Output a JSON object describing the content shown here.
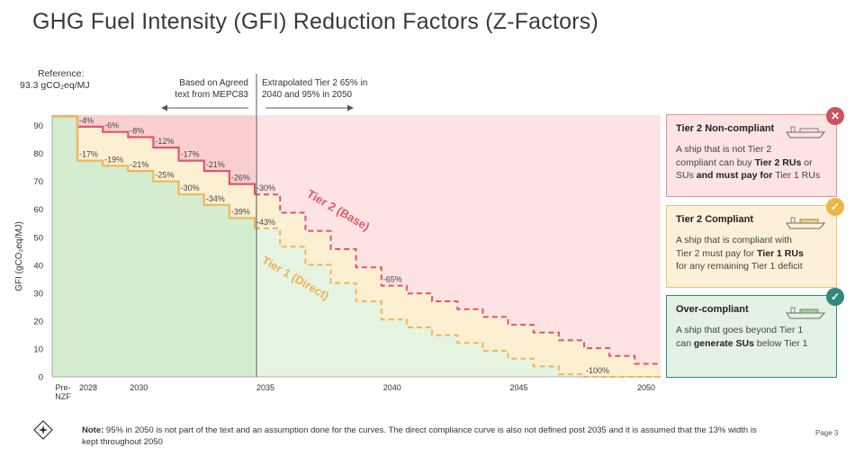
{
  "title": "GHG Fuel Intensity (GFI) Reduction Factors (Z-Factors)",
  "reference": {
    "line1": "Reference:",
    "line2": "93.3 gCO₂eq/MJ"
  },
  "annotations": {
    "left_text_1": "Based on Agreed",
    "left_text_2": "text from MEPC83",
    "right_text_1": "Extrapolated Tier 2 65% in",
    "right_text_2": "2040 and 95% in 2050",
    "label_tier2": "Tier 2 (Base)",
    "label_tier1": "Tier 1 (Direct)"
  },
  "cards": [
    {
      "title": "Tier 2 Non-compliant",
      "body_lines": [
        [
          "A ship that is not Tier 2",
          ""
        ],
        [
          "compliant can buy ",
          "Tier 2 RUs",
          " or"
        ],
        [
          "SUs",
          " and must pay for ",
          "Tier 1 RUs"
        ]
      ],
      "badge": "✕",
      "color": "#c9545b"
    },
    {
      "title": "Tier 2 Compliant",
      "body_lines": [
        [
          "A ship that is compliant with"
        ],
        [
          "Tier 2 must pay for ",
          "Tier 1 RUs"
        ],
        [
          "for any remaining Tier 1 deficit"
        ]
      ],
      "badge": "✓",
      "color": "#f0b54a"
    },
    {
      "title": "Over-compliant",
      "body_lines": [
        [
          "A ship that goes beyond Tier 1"
        ],
        [
          "can ",
          "generate SUs",
          " below Tier 1"
        ]
      ],
      "badge": "✓",
      "color": "#2e8a7d"
    }
  ],
  "note": {
    "label": "Note:",
    "text": "95% in 2050 is not part of the text and an assumption done for the curves. The direct compliance curve is also not defined post 2035 and it is assumed that the 13% width is kept throughout 2050"
  },
  "page_label": "Page 3",
  "colors": {
    "red_zone": "#fde3e3",
    "yellow_zone": "#fdf0d2",
    "green_zone": "#e6f5e2",
    "green_zone_solid": "#d4ecd0",
    "tier2_line": "#e0566a",
    "tier1_line": "#f2b45a"
  },
  "chart_data": {
    "type": "line",
    "title": "GHG Fuel Intensity (GFI) Reduction Factors (Z-Factors)",
    "ylabel": "GFI (gCO₂eq/MJ)",
    "xlabel": "",
    "ylim": [
      0,
      95
    ],
    "y_ticks": [
      0,
      10,
      20,
      30,
      40,
      50,
      60,
      70,
      80,
      90
    ],
    "x_tick_labels": [
      {
        "year": 2026,
        "label": "Pre-\nNZF"
      },
      {
        "year": 2028,
        "label": "2028"
      },
      {
        "year": 2030,
        "label": "2030"
      },
      {
        "year": 2035,
        "label": "2035"
      },
      {
        "year": 2040,
        "label": "2040"
      },
      {
        "year": 2045,
        "label": "2045"
      },
      {
        "year": 2050,
        "label": "2050"
      }
    ],
    "reference_value": 93.3,
    "step_years": [
      2028,
      2029,
      2030,
      2031,
      2032,
      2033,
      2034,
      2035,
      2036,
      2037,
      2038,
      2039,
      2040,
      2041,
      2042,
      2043,
      2044,
      2045,
      2046,
      2047,
      2048,
      2049,
      2050
    ],
    "series": [
      {
        "name": "Tier 2 (Base)",
        "reductions": [
          4,
          6,
          8,
          12,
          17,
          21,
          26,
          30,
          37,
          44,
          51,
          58,
          65,
          68,
          71,
          74,
          77,
          80,
          83,
          86,
          89,
          92,
          95
        ],
        "labels": {
          "2028": "-4%",
          "2029": "-6%",
          "2030": "-8%",
          "2031": "-12%",
          "2032": "-17%",
          "2033": "-21%",
          "2034": "-26%",
          "2035": "-30%",
          "2040": "-65%"
        }
      },
      {
        "name": "Tier 1 (Direct)",
        "reductions": [
          17,
          19,
          21,
          25,
          30,
          34,
          39,
          43,
          50,
          57,
          64,
          71,
          78,
          81,
          84,
          87,
          90,
          93,
          96,
          99,
          100,
          100,
          100
        ],
        "labels": {
          "2028": "-17%",
          "2029": "-19%",
          "2030": "-21%",
          "2031": "-25%",
          "2032": "-30%",
          "2033": "-34%",
          "2034": "-39%",
          "2035": "-43%",
          "2048": "-100%"
        }
      }
    ],
    "dashed_after": 2035,
    "grid": false
  }
}
